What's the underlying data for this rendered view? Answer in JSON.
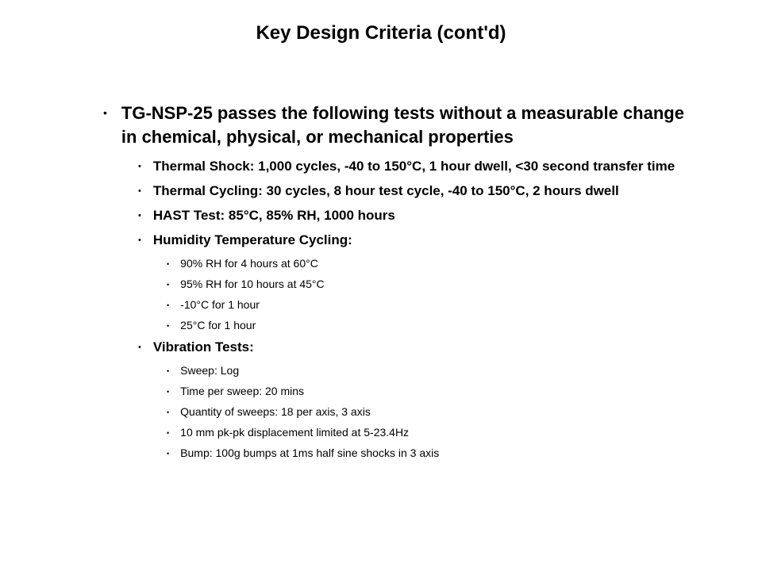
{
  "title": "Key Design Criteria (cont'd)",
  "intro": "TG-NSP-25 passes the following tests without a measurable change in chemical, physical, or mechanical properties",
  "tests": {
    "thermal_shock": "Thermal Shock: 1,000 cycles, -40 to 150°C, 1 hour dwell, <30 second transfer time",
    "thermal_cycling": "Thermal Cycling: 30 cycles, 8 hour test cycle, -40 to 150°C, 2 hours dwell",
    "hast": "HAST Test: 85°C, 85% RH, 1000 hours",
    "humidity_header": "Humidity Temperature Cycling:",
    "humidity_items": {
      "h1": "90% RH for 4 hours at 60°C",
      "h2": "95% RH for 10 hours at 45°C",
      "h3": "-10°C for 1 hour",
      "h4": "25°C for 1 hour"
    },
    "vibration_header": "Vibration Tests:",
    "vibration_items": {
      "v1": "Sweep: Log",
      "v2": "Time per sweep: 20 mins",
      "v3": "Quantity of sweeps: 18 per axis, 3 axis",
      "v4": "10 mm pk-pk displacement limited at 5-23.4Hz",
      "v5": "Bump: 100g bumps at 1ms half sine shocks in 3 axis"
    }
  },
  "style": {
    "background_color": "#ffffff",
    "text_color": "#000000",
    "title_fontsize": 24,
    "l1_fontsize": 22,
    "l2_fontsize": 17,
    "l3_fontsize": 14,
    "font_family": "Arial"
  }
}
